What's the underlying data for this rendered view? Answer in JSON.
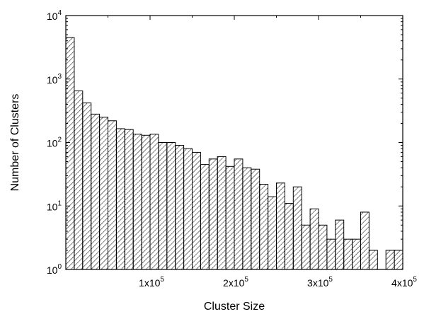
{
  "chart_data": {
    "type": "bar",
    "title": "",
    "xlabel": "Cluster Size",
    "ylabel": "Number of Clusters",
    "y_scale": "log",
    "ylim": [
      1,
      10000
    ],
    "xlim": [
      0,
      400000
    ],
    "x_ticks": [
      {
        "value": 100000,
        "mantissa": "1x10",
        "exp": "5"
      },
      {
        "value": 200000,
        "mantissa": "2x10",
        "exp": "5"
      },
      {
        "value": 300000,
        "mantissa": "3x10",
        "exp": "5"
      },
      {
        "value": 400000,
        "mantissa": "4x10",
        "exp": "5"
      }
    ],
    "y_ticks": [
      {
        "value": 1,
        "mantissa": "10",
        "exp": "0"
      },
      {
        "value": 10,
        "mantissa": "10",
        "exp": "1"
      },
      {
        "value": 100,
        "mantissa": "10",
        "exp": "2"
      },
      {
        "value": 1000,
        "mantissa": "10",
        "exp": "3"
      },
      {
        "value": 10000,
        "mantissa": "10",
        "exp": "4"
      }
    ],
    "bin_width": 10000,
    "bins": [
      {
        "x_start": 0,
        "value": 4500
      },
      {
        "x_start": 10000,
        "value": 650
      },
      {
        "x_start": 20000,
        "value": 420
      },
      {
        "x_start": 30000,
        "value": 280
      },
      {
        "x_start": 40000,
        "value": 250
      },
      {
        "x_start": 50000,
        "value": 220
      },
      {
        "x_start": 60000,
        "value": 165
      },
      {
        "x_start": 70000,
        "value": 160
      },
      {
        "x_start": 80000,
        "value": 135
      },
      {
        "x_start": 90000,
        "value": 130
      },
      {
        "x_start": 100000,
        "value": 135
      },
      {
        "x_start": 110000,
        "value": 100
      },
      {
        "x_start": 120000,
        "value": 100
      },
      {
        "x_start": 130000,
        "value": 90
      },
      {
        "x_start": 140000,
        "value": 80
      },
      {
        "x_start": 150000,
        "value": 70
      },
      {
        "x_start": 160000,
        "value": 45
      },
      {
        "x_start": 170000,
        "value": 55
      },
      {
        "x_start": 180000,
        "value": 60
      },
      {
        "x_start": 190000,
        "value": 42
      },
      {
        "x_start": 200000,
        "value": 55
      },
      {
        "x_start": 210000,
        "value": 40
      },
      {
        "x_start": 220000,
        "value": 38
      },
      {
        "x_start": 230000,
        "value": 22
      },
      {
        "x_start": 240000,
        "value": 14
      },
      {
        "x_start": 250000,
        "value": 23
      },
      {
        "x_start": 260000,
        "value": 11
      },
      {
        "x_start": 270000,
        "value": 20
      },
      {
        "x_start": 280000,
        "value": 5
      },
      {
        "x_start": 290000,
        "value": 9
      },
      {
        "x_start": 300000,
        "value": 5
      },
      {
        "x_start": 310000,
        "value": 3
      },
      {
        "x_start": 320000,
        "value": 6
      },
      {
        "x_start": 330000,
        "value": 3
      },
      {
        "x_start": 340000,
        "value": 3
      },
      {
        "x_start": 350000,
        "value": 8
      },
      {
        "x_start": 360000,
        "value": 2
      },
      {
        "x_start": 380000,
        "value": 2
      },
      {
        "x_start": 390000,
        "value": 2
      }
    ],
    "grid": false,
    "bar_fill": "hatched",
    "colors": {
      "bar_stroke": "#000000",
      "hatch": "#000000",
      "background": "#ffffff"
    }
  }
}
